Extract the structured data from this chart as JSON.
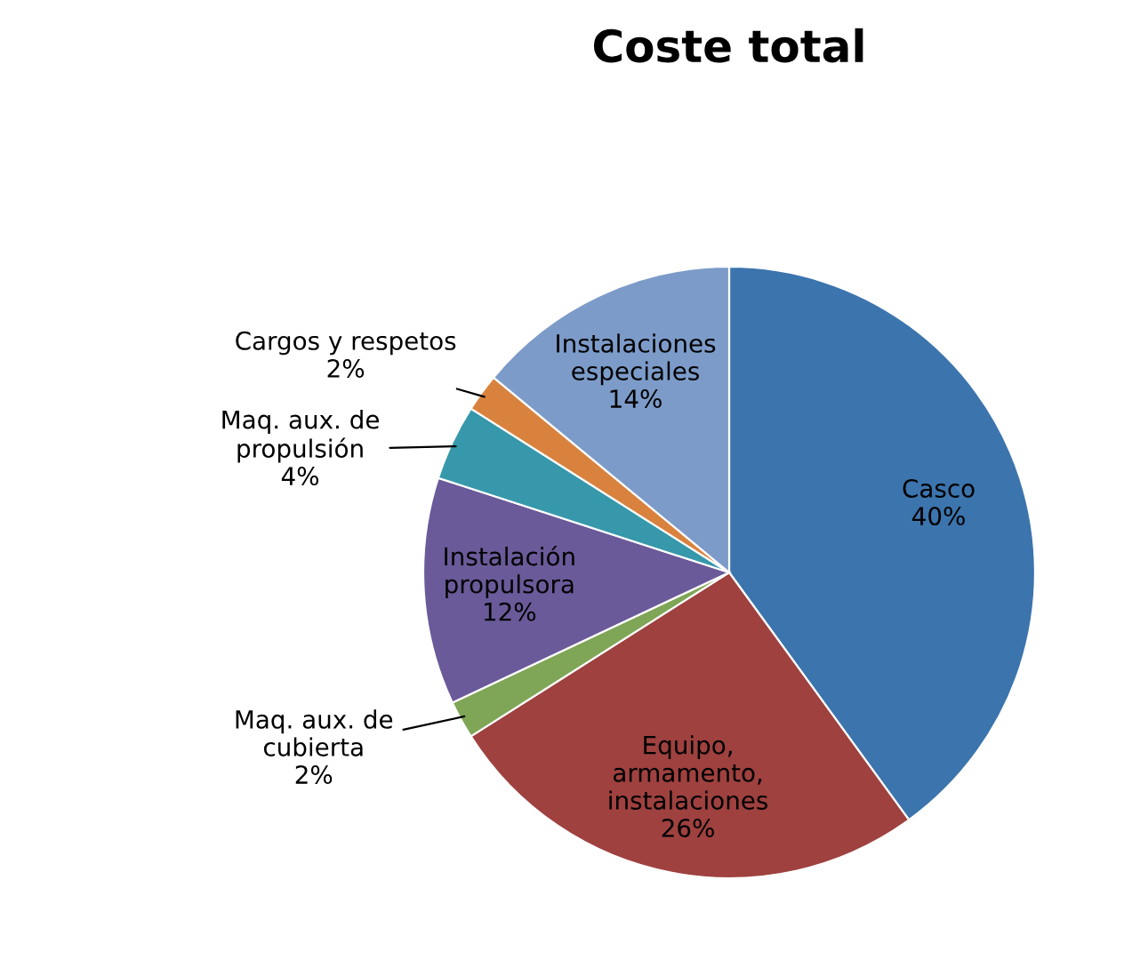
{
  "chart_data": {
    "type": "pie",
    "title": "Coste total",
    "categories": [
      "Casco",
      "Equipo,\narmamento,\ninstalaciones",
      "Maq. aux. de\ncubierta",
      "Instalación\npropulsora",
      "Maq. aux. de\npropulsión",
      "Cargos y respetos",
      "Instalaciones\nespeciales"
    ],
    "values": [
      40,
      26,
      2,
      12,
      4,
      2,
      14
    ],
    "colors": [
      "#3c74ad",
      "#9e413f",
      "#7fa556",
      "#6a5a99",
      "#3798ab",
      "#d9823e",
      "#7c9bc9"
    ],
    "value_labels": [
      "40%",
      "26%",
      "2%",
      "12%",
      "4%",
      "2%",
      "14%"
    ]
  }
}
